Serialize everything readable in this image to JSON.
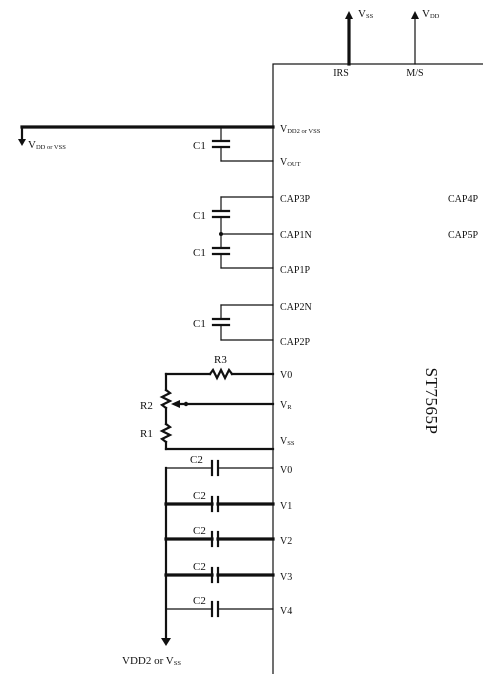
{
  "supply": {
    "top_left": {
      "main": "V",
      "sub": "SS"
    },
    "top_right": {
      "main": "V",
      "sub": "DD"
    },
    "left_rail": {
      "main": "V",
      "sub": "DD or VSS"
    },
    "bottom": {
      "main": "VDD2 or V",
      "sub": "SS"
    }
  },
  "chip": {
    "name": "ST7565P",
    "top_pins": [
      "IRS",
      "M/S"
    ],
    "right_pins": [
      "CAP4P",
      "CAP5P"
    ],
    "left_pins": [
      {
        "main": "V",
        "sub": "DD2 or VSS"
      },
      {
        "main": "V",
        "sub": "OUT"
      },
      {
        "main": "CAP3P",
        "sub": ""
      },
      {
        "main": "CAP1N",
        "sub": ""
      },
      {
        "main": "CAP1P",
        "sub": ""
      },
      {
        "main": "CAP2N",
        "sub": ""
      },
      {
        "main": "CAP2P",
        "sub": ""
      },
      {
        "main": "V0",
        "sub": ""
      },
      {
        "main": "V",
        "sub": "R"
      },
      {
        "main": "V",
        "sub": "SS"
      },
      {
        "main": "V0",
        "sub": ""
      },
      {
        "main": "V1",
        "sub": ""
      },
      {
        "main": "V2",
        "sub": ""
      },
      {
        "main": "V3",
        "sub": ""
      },
      {
        "main": "V4",
        "sub": ""
      }
    ]
  },
  "components": {
    "c1": [
      "C1",
      "C1",
      "C1",
      "C1"
    ],
    "c2": [
      "C2",
      "C2",
      "C2",
      "C2",
      "C2"
    ],
    "resistors": [
      "R3",
      "R2",
      "R1"
    ]
  },
  "colors": {
    "ink": "#111111",
    "background": "#ffffff"
  }
}
